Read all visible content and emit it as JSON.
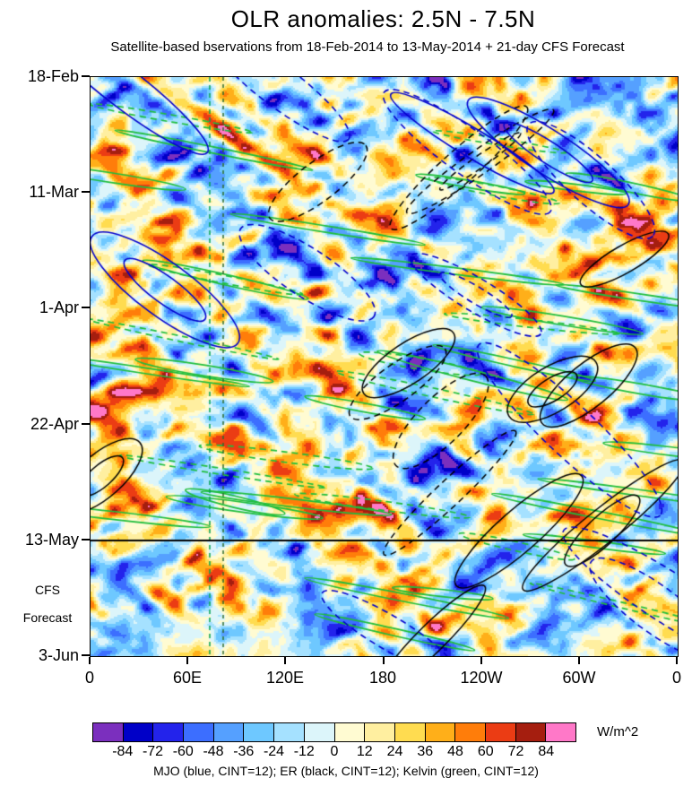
{
  "title": "OLR anomalies: 2.5N - 7.5N",
  "subtitle": "Satellite-based bservations from 18-Feb-2014 to 13-May-2014 + 21-day CFS Forecast",
  "y_axis": {
    "ticks": [
      "18-Feb",
      "11-Mar",
      "1-Apr",
      "22-Apr",
      "13-May",
      "3-Jun"
    ],
    "forecast_label_lines": [
      "CFS",
      "Forecast"
    ]
  },
  "x_axis": {
    "ticks": [
      "0",
      "60E",
      "120E",
      "180",
      "120W",
      "60W",
      "0"
    ]
  },
  "colorbar": {
    "levels": [
      "-84",
      "-72",
      "-60",
      "-48",
      "-36",
      "-24",
      "-12",
      "0",
      "12",
      "24",
      "36",
      "48",
      "60",
      "72",
      "84"
    ],
    "colors": [
      "#7B2FBE",
      "#0000C8",
      "#2323EB",
      "#3C6EFF",
      "#55A0FF",
      "#6EC8FF",
      "#A5E1FF",
      "#DCF5FA",
      "#FFFBD2",
      "#FFEFA0",
      "#FFDC50",
      "#FFAF19",
      "#FF7D0A",
      "#EB3C14",
      "#A51E0F",
      "#FF78C8"
    ],
    "units": "W/m^2"
  },
  "legend": "MJO (blue, CINT=12); ER (black, CINT=12); Kelvin (green, CINT=12)",
  "chart_data": {
    "type": "heatmap",
    "subtype": "hovmoller-time-longitude",
    "title": "OLR anomalies: 2.5N - 7.5N",
    "fill_variable": "OLR anomaly",
    "units": "W/m^2",
    "x_tick_labels": [
      "0",
      "60E",
      "120E",
      "180",
      "120W",
      "60W",
      "0"
    ],
    "x_range_degrees_east": [
      0,
      360
    ],
    "y_tick_labels": [
      "18-Feb",
      "11-Mar",
      "1-Apr",
      "22-Apr",
      "13-May",
      "3-Jun"
    ],
    "y_range_dates": [
      "18-Feb-2014",
      "3-Jun-2014"
    ],
    "observation_period": [
      "18-Feb-2014",
      "13-May-2014"
    ],
    "forecast_divider_date": "13-May",
    "forecast_length_days": 21,
    "forecast_annotation": [
      "CFS",
      "Forecast"
    ],
    "fill_levels": [
      -84,
      -72,
      -60,
      -48,
      -36,
      -24,
      -12,
      0,
      12,
      24,
      36,
      48,
      60,
      72,
      84
    ],
    "fill_colors": [
      "#7B2FBE",
      "#0000C8",
      "#2323EB",
      "#3C6EFF",
      "#55A0FF",
      "#6EC8FF",
      "#A5E1FF",
      "#DCF5FA",
      "#FFFBD2",
      "#FFEFA0",
      "#FFDC50",
      "#FFAF19",
      "#FF7D0A",
      "#EB3C14",
      "#A51E0F",
      "#FF78C8"
    ],
    "contour_interval": 12,
    "overlays": [
      {
        "name": "MJO",
        "color": "#0000CD",
        "cint": 12,
        "style": "solid/dashed elliptical contours tilted down-to-right (eastward propagation)"
      },
      {
        "name": "ER",
        "color": "#000000",
        "cint": 12,
        "style": "solid/dashed elliptical contours tilted down-to-left (westward propagation)"
      },
      {
        "name": "Kelvin",
        "color": "#1FBE3C",
        "cint": 12,
        "style": "thin elongated solid/dashed streak contours, shallow eastward tilt"
      }
    ],
    "reference_lines": {
      "horizontal_black_solid": "13-May (start of CFS forecast)",
      "vertical_green_dashed_longitudes_east": [
        73,
        81
      ]
    },
    "legend": "MJO (blue, CINT=12); ER (black, CINT=12); Kelvin (green, CINT=12)"
  }
}
